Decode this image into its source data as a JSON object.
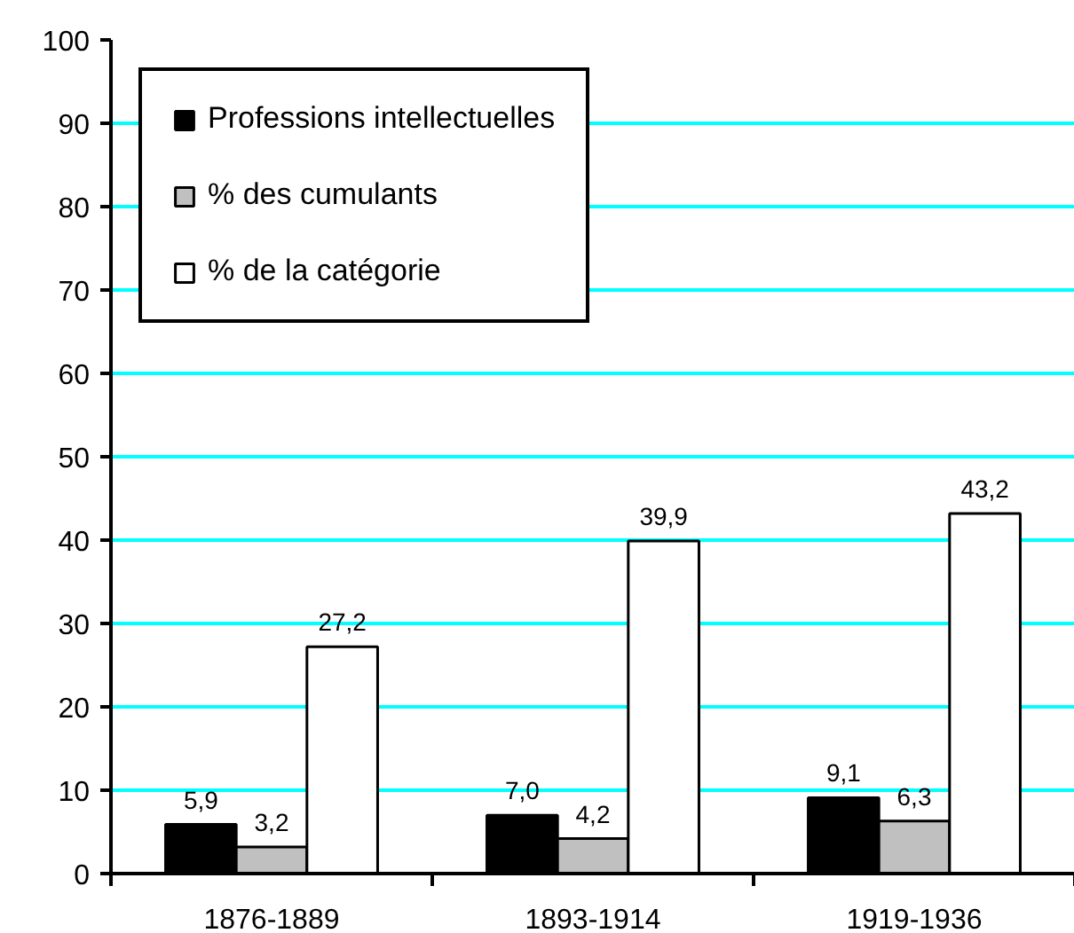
{
  "chart_data": {
    "type": "bar",
    "categories": [
      "1876-1889",
      "1893-1914",
      "1919-1936"
    ],
    "series": [
      {
        "name": "Professions intellectuelles",
        "color": "#000000",
        "values": [
          5.9,
          7.0,
          9.1
        ],
        "value_labels": [
          "5,9",
          "7,0",
          "9,1"
        ]
      },
      {
        "name": "% des cumulants",
        "color": "#c0c0c0",
        "values": [
          3.2,
          4.2,
          6.3
        ],
        "value_labels": [
          "3,2",
          "4,2",
          "6,3"
        ]
      },
      {
        "name": "% de la catégorie",
        "color": "#ffffff",
        "values": [
          27.2,
          39.9,
          43.2
        ],
        "value_labels": [
          "27,2",
          "39,9",
          "43,2"
        ]
      }
    ],
    "ylim": [
      0,
      100
    ],
    "yticks": [
      0,
      10,
      20,
      30,
      40,
      50,
      60,
      70,
      80,
      90,
      100
    ],
    "grid": "y",
    "legend": "top left"
  }
}
